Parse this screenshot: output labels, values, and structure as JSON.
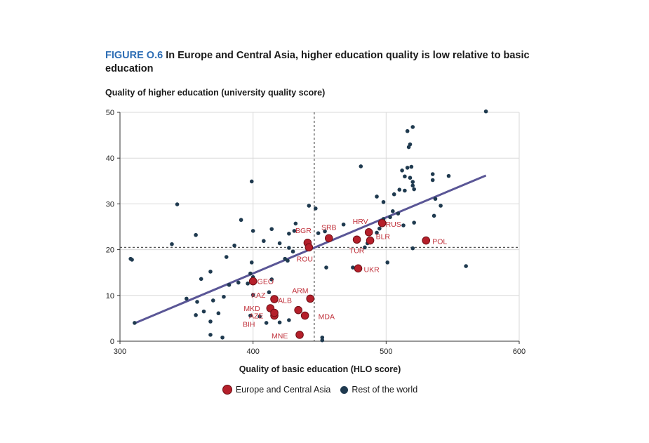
{
  "figure": {
    "label": "FIGURE O.6",
    "title": "In Europe and Central Asia, higher education quality is low relative to basic education"
  },
  "colors": {
    "eca": "#b51f2a",
    "eca_stroke": "#6d0f15",
    "row": "#1f3a4f",
    "trend": "#5a5696",
    "ref_line": "#555555",
    "grid": "#d9d9d9",
    "label": "#c0303a"
  },
  "chart_data": {
    "type": "scatter",
    "xlabel": "Quality of basic education (HLO score)",
    "ylabel": "Quality of higher education (university quality score)",
    "xlim": [
      300,
      600
    ],
    "ylim": [
      0,
      50
    ],
    "xticks": [
      300,
      400,
      500,
      600
    ],
    "yticks": [
      0,
      10,
      20,
      30,
      40,
      50
    ],
    "grid": "horizontal and vertical",
    "reference_lines": {
      "x": 446,
      "y": 20.5
    },
    "trendline": {
      "from": [
        310,
        3.8
      ],
      "to": [
        575,
        36.2
      ]
    },
    "legend_position": "bottom",
    "series": [
      {
        "name": "Europe and Central Asia",
        "points": [
          {
            "label": "SRB",
            "x": 457,
            "y": 22.5
          },
          {
            "label": "BGR",
            "x": 441,
            "y": 21.5
          },
          {
            "label": "ROU",
            "x": 442,
            "y": 20.5
          },
          {
            "label": "HRV",
            "x": 487,
            "y": 23.8
          },
          {
            "label": "RUS",
            "x": 497,
            "y": 25.8
          },
          {
            "label": "BLR",
            "x": 488,
            "y": 22.0
          },
          {
            "label": "TUR",
            "x": 478,
            "y": 22.2
          },
          {
            "label": "UKR",
            "x": 479,
            "y": 15.9
          },
          {
            "label": "POL",
            "x": 530,
            "y": 22.0
          },
          {
            "label": "GEO",
            "x": 400,
            "y": 13.1
          },
          {
            "label": "ARM",
            "x": 443,
            "y": 9.3
          },
          {
            "label": "KAZ",
            "x": 416,
            "y": 9.2
          },
          {
            "label": "ALB",
            "x": 434,
            "y": 6.8
          },
          {
            "label": "MKD",
            "x": 413,
            "y": 7.2
          },
          {
            "label": "AZE",
            "x": 416,
            "y": 5.6
          },
          {
            "label": "MDA",
            "x": 439,
            "y": 5.6
          },
          {
            "label": "BIH",
            "x": 416,
            "y": 6.2
          },
          {
            "label": "MNE",
            "x": 435,
            "y": 1.4
          }
        ]
      },
      {
        "name": "Rest of the world",
        "points": [
          {
            "x": 575,
            "y": 50.2
          },
          {
            "x": 520,
            "y": 46.8
          },
          {
            "x": 516,
            "y": 45.9
          },
          {
            "x": 518,
            "y": 43.0
          },
          {
            "x": 517,
            "y": 42.4
          },
          {
            "x": 481,
            "y": 38.2
          },
          {
            "x": 512,
            "y": 37.3
          },
          {
            "x": 516,
            "y": 37.9
          },
          {
            "x": 519,
            "y": 38.1
          },
          {
            "x": 514,
            "y": 36.0
          },
          {
            "x": 518,
            "y": 35.7
          },
          {
            "x": 520,
            "y": 34.8
          },
          {
            "x": 520,
            "y": 34.0
          },
          {
            "x": 535,
            "y": 36.5
          },
          {
            "x": 535,
            "y": 35.2
          },
          {
            "x": 547,
            "y": 36.1
          },
          {
            "x": 514,
            "y": 32.9
          },
          {
            "x": 510,
            "y": 33.1
          },
          {
            "x": 521,
            "y": 33.2
          },
          {
            "x": 506,
            "y": 32.1
          },
          {
            "x": 493,
            "y": 31.6
          },
          {
            "x": 498,
            "y": 30.4
          },
          {
            "x": 537,
            "y": 31.1
          },
          {
            "x": 541,
            "y": 29.6
          },
          {
            "x": 505,
            "y": 28.4
          },
          {
            "x": 509,
            "y": 27.9
          },
          {
            "x": 503,
            "y": 27.1
          },
          {
            "x": 498,
            "y": 26.7
          },
          {
            "x": 513,
            "y": 25.3
          },
          {
            "x": 521,
            "y": 25.9
          },
          {
            "x": 536,
            "y": 27.4
          },
          {
            "x": 495,
            "y": 24.6
          },
          {
            "x": 493,
            "y": 23.7
          },
          {
            "x": 486,
            "y": 21.4
          },
          {
            "x": 484,
            "y": 20.5
          },
          {
            "x": 501,
            "y": 17.2
          },
          {
            "x": 520,
            "y": 20.3
          },
          {
            "x": 560,
            "y": 16.4
          },
          {
            "x": 475,
            "y": 16.1
          },
          {
            "x": 455,
            "y": 16.1
          },
          {
            "x": 468,
            "y": 25.5
          },
          {
            "x": 454,
            "y": 24.0
          },
          {
            "x": 449,
            "y": 23.6
          },
          {
            "x": 442,
            "y": 29.6
          },
          {
            "x": 447,
            "y": 29.0
          },
          {
            "x": 432,
            "y": 25.7
          },
          {
            "x": 431,
            "y": 24.1
          },
          {
            "x": 427,
            "y": 23.5
          },
          {
            "x": 414,
            "y": 24.5
          },
          {
            "x": 400,
            "y": 24.1
          },
          {
            "x": 420,
            "y": 21.4
          },
          {
            "x": 408,
            "y": 21.9
          },
          {
            "x": 427,
            "y": 20.4
          },
          {
            "x": 430,
            "y": 19.6
          },
          {
            "x": 424,
            "y": 18.0
          },
          {
            "x": 426,
            "y": 17.6
          },
          {
            "x": 399,
            "y": 34.9
          },
          {
            "x": 391,
            "y": 26.5
          },
          {
            "x": 343,
            "y": 29.9
          },
          {
            "x": 357,
            "y": 23.2
          },
          {
            "x": 339,
            "y": 21.2
          },
          {
            "x": 386,
            "y": 20.9
          },
          {
            "x": 380,
            "y": 18.4
          },
          {
            "x": 399,
            "y": 17.2
          },
          {
            "x": 368,
            "y": 15.2
          },
          {
            "x": 361,
            "y": 13.6
          },
          {
            "x": 382,
            "y": 12.3
          },
          {
            "x": 389,
            "y": 12.8
          },
          {
            "x": 396,
            "y": 12.6
          },
          {
            "x": 400,
            "y": 14.0
          },
          {
            "x": 398,
            "y": 14.8
          },
          {
            "x": 414,
            "y": 13.5
          },
          {
            "x": 378,
            "y": 9.7
          },
          {
            "x": 350,
            "y": 9.3
          },
          {
            "x": 358,
            "y": 8.6
          },
          {
            "x": 370,
            "y": 8.9
          },
          {
            "x": 412,
            "y": 10.7
          },
          {
            "x": 400,
            "y": 10.1
          },
          {
            "x": 363,
            "y": 6.5
          },
          {
            "x": 374,
            "y": 6.1
          },
          {
            "x": 357,
            "y": 5.7
          },
          {
            "x": 368,
            "y": 4.3
          },
          {
            "x": 398,
            "y": 5.6
          },
          {
            "x": 405,
            "y": 5.4
          },
          {
            "x": 410,
            "y": 4.0
          },
          {
            "x": 420,
            "y": 4.1
          },
          {
            "x": 427,
            "y": 4.6
          },
          {
            "x": 368,
            "y": 1.4
          },
          {
            "x": 377,
            "y": 0.8
          },
          {
            "x": 452,
            "y": 0.8
          },
          {
            "x": 452,
            "y": 0.2
          },
          {
            "x": 308,
            "y": 18.0
          },
          {
            "x": 309,
            "y": 17.8
          },
          {
            "x": 311,
            "y": 4.0
          }
        ]
      }
    ]
  }
}
